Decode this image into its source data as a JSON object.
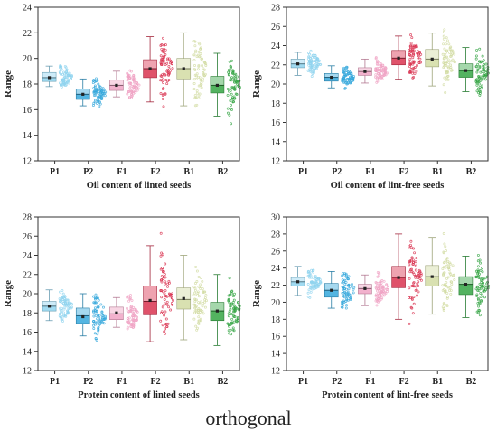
{
  "caption": "orthogonal",
  "colors": {
    "P1": "#8fd3ef",
    "P2": "#36a8dc",
    "F1": "#f0a3c4",
    "F2": "#d93350",
    "B1": "#d2dca3",
    "B2": "#35a544"
  },
  "chart_data": [
    {
      "type": "box",
      "ylabel": "Range",
      "xlabel": "Oil content of linted seeds",
      "ylim": [
        12,
        24
      ],
      "yticks": [
        12,
        14,
        16,
        18,
        20,
        22,
        24
      ],
      "categories": [
        "P1",
        "P2",
        "F1",
        "F2",
        "B1",
        "B2"
      ],
      "boxes": [
        {
          "name": "P1",
          "min": 17.8,
          "q1": 18.2,
          "median": 18.5,
          "mean": 18.5,
          "q3": 18.9,
          "max": 19.4
        },
        {
          "name": "P2",
          "min": 16.3,
          "q1": 16.8,
          "median": 17.2,
          "mean": 17.2,
          "q3": 17.6,
          "max": 18.4
        },
        {
          "name": "F1",
          "min": 17.0,
          "q1": 17.5,
          "median": 17.9,
          "mean": 17.9,
          "q3": 18.3,
          "max": 19.0
        },
        {
          "name": "F2",
          "min": 16.6,
          "q1": 18.5,
          "median": 19.2,
          "mean": 19.2,
          "q3": 19.9,
          "max": 21.7
        },
        {
          "name": "B1",
          "min": 16.3,
          "q1": 18.4,
          "median": 19.2,
          "mean": 19.2,
          "q3": 20.0,
          "max": 22.0
        },
        {
          "name": "B2",
          "min": 15.5,
          "q1": 17.3,
          "median": 17.9,
          "mean": 17.9,
          "q3": 18.6,
          "max": 20.4
        }
      ]
    },
    {
      "type": "box",
      "ylabel": "Range",
      "xlabel": "Oil content of lint-free seeds",
      "ylim": [
        12,
        28
      ],
      "yticks": [
        12,
        14,
        16,
        18,
        20,
        22,
        24,
        26,
        28
      ],
      "categories": [
        "P1",
        "P2",
        "F1",
        "F2",
        "B1",
        "B2"
      ],
      "boxes": [
        {
          "name": "P1",
          "min": 20.9,
          "q1": 21.7,
          "median": 22.1,
          "mean": 22.1,
          "q3": 22.6,
          "max": 23.3
        },
        {
          "name": "P2",
          "min": 19.6,
          "q1": 20.3,
          "median": 20.7,
          "mean": 20.7,
          "q3": 21.1,
          "max": 21.9
        },
        {
          "name": "F1",
          "min": 20.1,
          "q1": 20.9,
          "median": 21.3,
          "mean": 21.3,
          "q3": 21.7,
          "max": 22.6
        },
        {
          "name": "F2",
          "min": 20.5,
          "q1": 22.0,
          "median": 22.7,
          "mean": 22.7,
          "q3": 23.5,
          "max": 25.0
        },
        {
          "name": "B1",
          "min": 19.8,
          "q1": 21.8,
          "median": 22.6,
          "mean": 22.6,
          "q3": 23.6,
          "max": 25.3
        },
        {
          "name": "B2",
          "min": 19.2,
          "q1": 20.7,
          "median": 21.4,
          "mean": 21.4,
          "q3": 22.1,
          "max": 23.8
        }
      ]
    },
    {
      "type": "box",
      "ylabel": "Range",
      "xlabel": "Protein content of linted seeds",
      "ylim": [
        12,
        28
      ],
      "yticks": [
        12,
        14,
        16,
        18,
        20,
        22,
        24,
        26,
        28
      ],
      "categories": [
        "P1",
        "P2",
        "F1",
        "F2",
        "B1",
        "B2"
      ],
      "boxes": [
        {
          "name": "P1",
          "min": 17.2,
          "q1": 18.2,
          "median": 18.7,
          "mean": 18.7,
          "q3": 19.2,
          "max": 20.4
        },
        {
          "name": "P2",
          "min": 15.6,
          "q1": 16.9,
          "median": 17.7,
          "mean": 17.6,
          "q3": 18.5,
          "max": 20.0
        },
        {
          "name": "F1",
          "min": 16.5,
          "q1": 17.3,
          "median": 17.9,
          "mean": 18.0,
          "q3": 18.6,
          "max": 19.6
        },
        {
          "name": "F2",
          "min": 15.0,
          "q1": 17.8,
          "median": 19.2,
          "mean": 19.3,
          "q3": 20.8,
          "max": 25.0
        },
        {
          "name": "B1",
          "min": 15.2,
          "q1": 18.4,
          "median": 19.4,
          "mean": 19.5,
          "q3": 20.6,
          "max": 24.0
        },
        {
          "name": "B2",
          "min": 14.6,
          "q1": 17.2,
          "median": 18.2,
          "mean": 18.2,
          "q3": 19.1,
          "max": 22.0
        }
      ]
    },
    {
      "type": "box",
      "ylabel": "Range",
      "xlabel": "Protein content of lint-free seeds",
      "ylim": [
        12,
        30
      ],
      "yticks": [
        12,
        14,
        16,
        18,
        20,
        22,
        24,
        26,
        28,
        30
      ],
      "categories": [
        "P1",
        "P2",
        "F1",
        "F2",
        "B1",
        "B2"
      ],
      "boxes": [
        {
          "name": "P1",
          "min": 20.8,
          "q1": 21.9,
          "median": 22.4,
          "mean": 22.4,
          "q3": 22.9,
          "max": 24.2
        },
        {
          "name": "P2",
          "min": 19.3,
          "q1": 20.6,
          "median": 21.4,
          "mean": 21.4,
          "q3": 22.2,
          "max": 23.6
        },
        {
          "name": "F1",
          "min": 19.6,
          "q1": 21.0,
          "median": 21.6,
          "mean": 21.6,
          "q3": 22.1,
          "max": 23.2
        },
        {
          "name": "F2",
          "min": 18.0,
          "q1": 21.7,
          "median": 22.9,
          "mean": 22.9,
          "q3": 24.2,
          "max": 28.0
        },
        {
          "name": "B1",
          "min": 18.6,
          "q1": 21.9,
          "median": 23.0,
          "mean": 23.0,
          "q3": 24.3,
          "max": 27.6
        },
        {
          "name": "B2",
          "min": 18.2,
          "q1": 20.9,
          "median": 22.1,
          "mean": 22.1,
          "q3": 23.0,
          "max": 25.4
        }
      ]
    }
  ]
}
